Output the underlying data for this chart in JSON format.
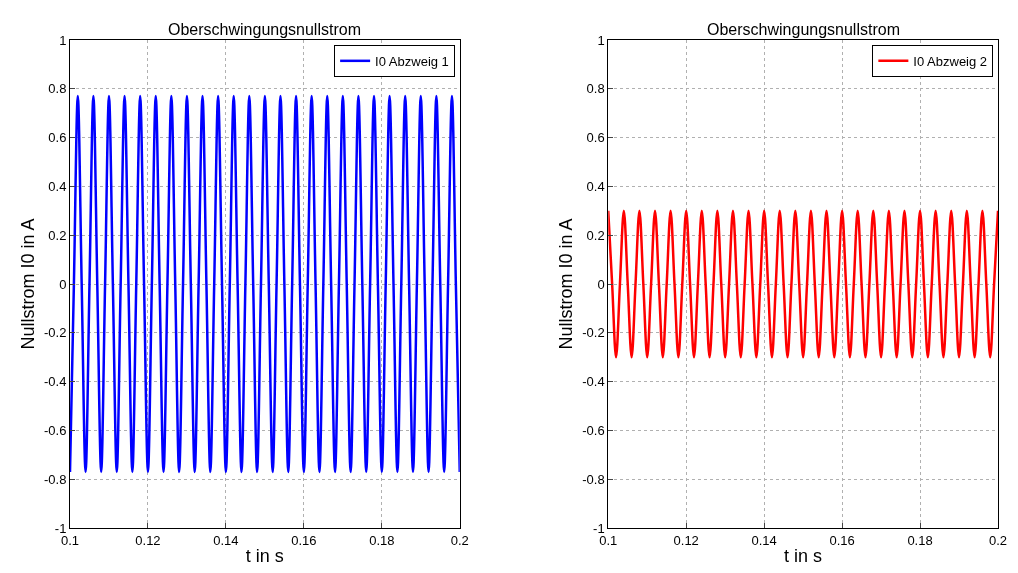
{
  "chart_data": [
    {
      "type": "line",
      "title": "Oberschwingungsnullstrom",
      "xlabel": "t in s",
      "ylabel": "Nullstrom I0 in A",
      "xlim": [
        0.1,
        0.2
      ],
      "ylim": [
        -1,
        1
      ],
      "xticks": [
        0.1,
        0.12,
        0.14,
        0.16,
        0.18,
        0.2
      ],
      "yticks": [
        -1,
        -0.8,
        -0.6,
        -0.4,
        -0.2,
        0,
        0.2,
        0.4,
        0.6,
        0.8,
        1
      ],
      "grid": true,
      "legend": "top right",
      "marker": "none",
      "line_style": "solid",
      "x": [
        0.1,
        0.101,
        0.102,
        0.103,
        0.104,
        0.105,
        0.106,
        0.107,
        0.108,
        0.109,
        0.11,
        0.111,
        0.112,
        0.113,
        0.114,
        0.115,
        0.116,
        0.117,
        0.118,
        0.119,
        0.12,
        0.121,
        0.122,
        0.123,
        0.124,
        0.125,
        0.126,
        0.127,
        0.128,
        0.129,
        0.13,
        0.131,
        0.132,
        0.133,
        0.134,
        0.135,
        0.136,
        0.137,
        0.138,
        0.139,
        0.14,
        0.141,
        0.142,
        0.143,
        0.144,
        0.145,
        0.146,
        0.147,
        0.148,
        0.149,
        0.15,
        0.151,
        0.152,
        0.153,
        0.154,
        0.155,
        0.156,
        0.157,
        0.158,
        0.159,
        0.16,
        0.161,
        0.162,
        0.163,
        0.164,
        0.165,
        0.166,
        0.167,
        0.168,
        0.169,
        0.17,
        0.171,
        0.172,
        0.173,
        0.174,
        0.175,
        0.176,
        0.177,
        0.178,
        0.179,
        0.18,
        0.181,
        0.182,
        0.183,
        0.184,
        0.185,
        0.186,
        0.187,
        0.188,
        0.189,
        0.19,
        0.191,
        0.192,
        0.193,
        0.194,
        0.195,
        0.196,
        0.197,
        0.198,
        0.199,
        0.2
      ],
      "series": [
        {
          "name": "I0 Abzweig 1",
          "color": "#0000ff",
          "values": [
            -0.77,
            0,
            0.77,
            0,
            -0.77,
            0,
            0.77,
            0,
            -0.77,
            0,
            0.77,
            0,
            -0.77,
            0,
            0.77,
            0,
            -0.77,
            0,
            0.77,
            0,
            -0.77,
            0,
            0.77,
            0,
            -0.77,
            0,
            0.77,
            0,
            -0.77,
            0,
            0.77,
            0,
            -0.77,
            0,
            0.77,
            0,
            -0.77,
            0,
            0.77,
            0,
            -0.77,
            0,
            0.77,
            0,
            -0.77,
            0,
            0.77,
            0,
            -0.77,
            0,
            0.77,
            0,
            -0.77,
            0,
            0.77,
            0,
            -0.77,
            0,
            0.77,
            0,
            -0.77,
            0,
            0.77,
            0,
            -0.77,
            0,
            0.77,
            0,
            -0.77,
            0,
            0.77,
            0,
            -0.77,
            0,
            0.77,
            0,
            -0.77,
            0,
            0.77,
            0,
            -0.77,
            0,
            0.77,
            0,
            -0.77,
            0,
            0.77,
            0,
            -0.77,
            0,
            0.77,
            0,
            -0.77,
            0,
            0.77,
            0,
            -0.77,
            0,
            0.77,
            0,
            -0.77
          ]
        }
      ]
    },
    {
      "type": "line",
      "title": "Oberschwingungsnullstrom",
      "xlabel": "t in s",
      "ylabel": "Nullstrom I0 in A",
      "xlim": [
        0.1,
        0.2
      ],
      "ylim": [
        -1,
        1
      ],
      "xticks": [
        0.1,
        0.12,
        0.14,
        0.16,
        0.18,
        0.2
      ],
      "yticks": [
        -1,
        -0.8,
        -0.6,
        -0.4,
        -0.2,
        0,
        0.2,
        0.4,
        0.6,
        0.8,
        1
      ],
      "grid": true,
      "legend": "top right",
      "marker": "none",
      "line_style": "solid",
      "x": [
        0.1,
        0.101,
        0.102,
        0.103,
        0.104,
        0.105,
        0.106,
        0.107,
        0.108,
        0.109,
        0.11,
        0.111,
        0.112,
        0.113,
        0.114,
        0.115,
        0.116,
        0.117,
        0.118,
        0.119,
        0.12,
        0.121,
        0.122,
        0.123,
        0.124,
        0.125,
        0.126,
        0.127,
        0.128,
        0.129,
        0.13,
        0.131,
        0.132,
        0.133,
        0.134,
        0.135,
        0.136,
        0.137,
        0.138,
        0.139,
        0.14,
        0.141,
        0.142,
        0.143,
        0.144,
        0.145,
        0.146,
        0.147,
        0.148,
        0.149,
        0.15,
        0.151,
        0.152,
        0.153,
        0.154,
        0.155,
        0.156,
        0.157,
        0.158,
        0.159,
        0.16,
        0.161,
        0.162,
        0.163,
        0.164,
        0.165,
        0.166,
        0.167,
        0.168,
        0.169,
        0.17,
        0.171,
        0.172,
        0.173,
        0.174,
        0.175,
        0.176,
        0.177,
        0.178,
        0.179,
        0.18,
        0.181,
        0.182,
        0.183,
        0.184,
        0.185,
        0.186,
        0.187,
        0.188,
        0.189,
        0.19,
        0.191,
        0.192,
        0.193,
        0.194,
        0.195,
        0.196,
        0.197,
        0.198,
        0.199,
        0.2
      ],
      "series": [
        {
          "name": "I0 Abzweig 2",
          "color": "#ff0000",
          "values": [
            0.3,
            0,
            -0.3,
            0,
            0.3,
            0,
            -0.3,
            0,
            0.3,
            0,
            -0.3,
            0,
            0.3,
            0,
            -0.3,
            0,
            0.3,
            0,
            -0.3,
            0,
            0.3,
            0,
            -0.3,
            0,
            0.3,
            0,
            -0.3,
            0,
            0.3,
            0,
            -0.3,
            0,
            0.3,
            0,
            -0.3,
            0,
            0.3,
            0,
            -0.3,
            0,
            0.3,
            0,
            -0.3,
            0,
            0.3,
            0,
            -0.3,
            0,
            0.3,
            0,
            -0.3,
            0,
            0.3,
            0,
            -0.3,
            0,
            0.3,
            0,
            -0.3,
            0,
            0.3,
            0,
            -0.3,
            0,
            0.3,
            0,
            -0.3,
            0,
            0.3,
            0,
            -0.3,
            0,
            0.3,
            0,
            -0.3,
            0,
            0.3,
            0,
            -0.3,
            0,
            0.3,
            0,
            -0.3,
            0,
            0.3,
            0,
            -0.3,
            0,
            0.3,
            0,
            -0.3,
            0,
            0.3,
            0,
            -0.3,
            0,
            0.3,
            0,
            -0.3,
            0,
            0.3
          ]
        }
      ]
    }
  ]
}
